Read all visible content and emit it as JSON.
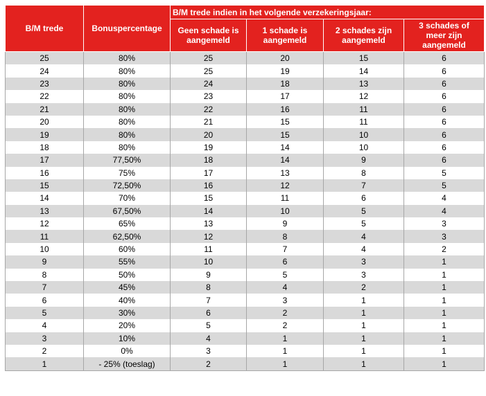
{
  "table": {
    "header": {
      "col1": [
        "B/M trede"
      ],
      "col2": [
        "Bonuspercentage"
      ],
      "group": [
        "B/M trede indien in het volgende verzekeringsjaar:"
      ],
      "sub": [
        [
          "Geen schade is",
          "aangemeld"
        ],
        [
          "1 schade is",
          "aangemeld"
        ],
        [
          "2 schades zijn",
          "aangemeld"
        ],
        [
          "3 schades of",
          "meer zijn",
          "aangemeld"
        ]
      ]
    },
    "rows": [
      [
        25,
        "80%",
        25,
        20,
        15,
        6
      ],
      [
        24,
        "80%",
        25,
        19,
        14,
        6
      ],
      [
        23,
        "80%",
        24,
        18,
        13,
        6
      ],
      [
        22,
        "80%",
        23,
        17,
        12,
        6
      ],
      [
        21,
        "80%",
        22,
        16,
        11,
        6
      ],
      [
        20,
        "80%",
        21,
        15,
        11,
        6
      ],
      [
        19,
        "80%",
        20,
        15,
        10,
        6
      ],
      [
        18,
        "80%",
        19,
        14,
        10,
        6
      ],
      [
        17,
        "77,50%",
        18,
        14,
        9,
        6
      ],
      [
        16,
        "75%",
        17,
        13,
        8,
        5
      ],
      [
        15,
        "72,50%",
        16,
        12,
        7,
        5
      ],
      [
        14,
        "70%",
        15,
        11,
        6,
        4
      ],
      [
        13,
        "67,50%",
        14,
        10,
        5,
        4
      ],
      [
        12,
        "65%",
        13,
        9,
        5,
        3
      ],
      [
        11,
        "62,50%",
        12,
        8,
        4,
        3
      ],
      [
        10,
        "60%",
        11,
        7,
        4,
        2
      ],
      [
        9,
        "55%",
        10,
        6,
        3,
        1
      ],
      [
        8,
        "50%",
        9,
        5,
        3,
        1
      ],
      [
        7,
        "45%",
        8,
        4,
        2,
        1
      ],
      [
        6,
        "40%",
        7,
        3,
        1,
        1
      ],
      [
        5,
        "30%",
        6,
        2,
        1,
        1
      ],
      [
        4,
        "20%",
        5,
        2,
        1,
        1
      ],
      [
        3,
        "10%",
        4,
        1,
        1,
        1
      ],
      [
        2,
        "0%",
        3,
        1,
        1,
        1
      ],
      [
        1,
        "- 25% (toeslag)",
        2,
        1,
        1,
        1
      ]
    ]
  }
}
